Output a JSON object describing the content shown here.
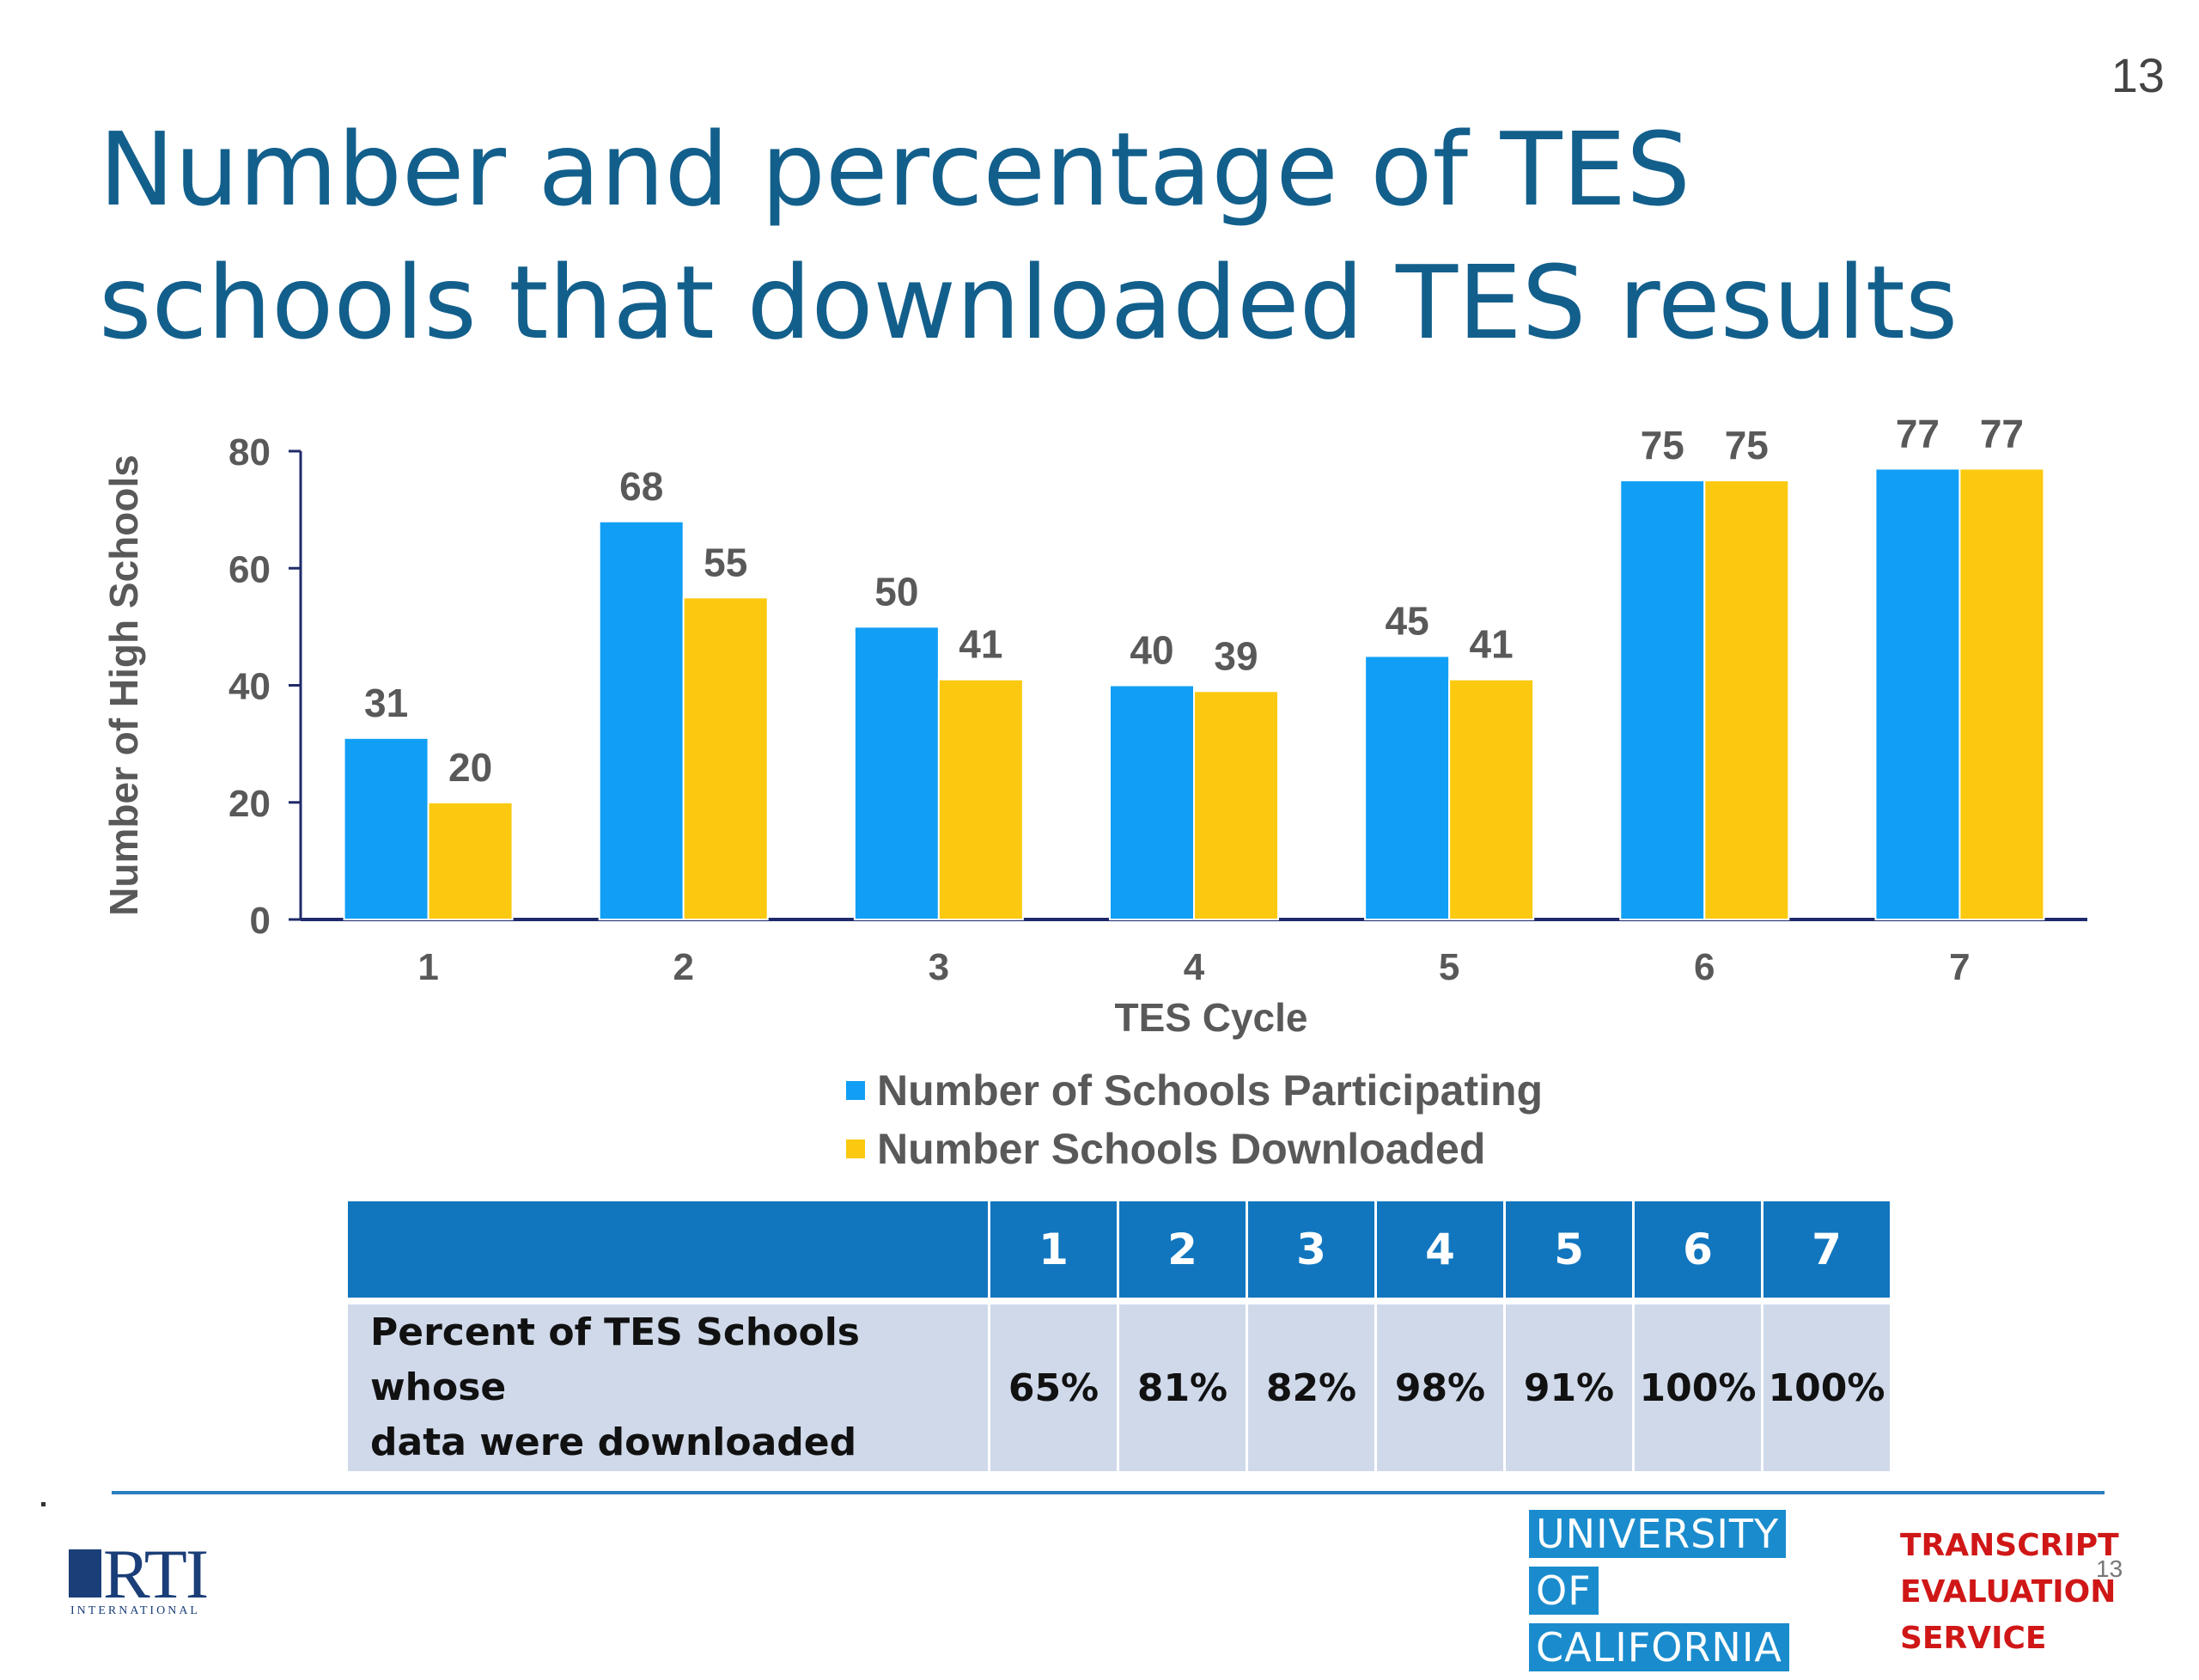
{
  "page_number": "13",
  "footer_page_number": "13",
  "title": "Number and percentage of TES schools that downloaded TES results",
  "chart_data": {
    "type": "bar",
    "categories": [
      "1",
      "2",
      "3",
      "4",
      "5",
      "6",
      "7"
    ],
    "series": [
      {
        "name": "Number of Schools Participating",
        "values": [
          31,
          68,
          50,
          40,
          45,
          75,
          77
        ],
        "color": "#119ff5"
      },
      {
        "name": "Number Schools Downloaded",
        "values": [
          20,
          55,
          41,
          39,
          41,
          75,
          77
        ],
        "color": "#fbc90f"
      }
    ],
    "xlabel": "TES Cycle",
    "ylabel": "Number of High Schools",
    "ylim": [
      0,
      80
    ],
    "yticks": [
      0,
      20,
      40,
      60,
      80
    ],
    "legend_position": "bottom",
    "grid": false
  },
  "table": {
    "header": [
      "",
      "1",
      "2",
      "3",
      "4",
      "5",
      "6",
      "7"
    ],
    "row_label_line1": "Percent of TES Schools whose",
    "row_label_line2": "data were downloaded",
    "values": [
      "65%",
      "81%",
      "82%",
      "98%",
      "91%",
      "100%",
      "100%"
    ]
  },
  "logos": {
    "rti_name": "RTI",
    "rti_subtext": "INTERNATIONAL",
    "uc_lines": [
      "UNIVERSITY",
      "OF",
      "CALIFORNIA"
    ],
    "tes_lines": [
      "TRANSCRIPT",
      "EVALUATION",
      "SERVICE"
    ]
  },
  "colors": {
    "title": "#135f8c",
    "table_header": "#1176be",
    "table_row": "#cfd9ea",
    "tes_red": "#d01717",
    "uc_blue": "#1a8ccd"
  }
}
